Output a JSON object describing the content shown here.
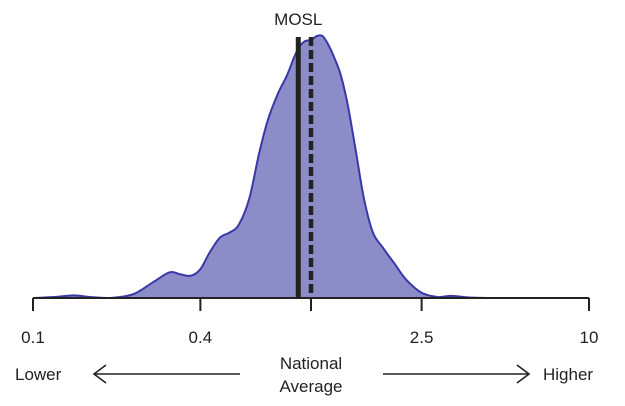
{
  "chart_data": {
    "type": "area",
    "x_scale": "log10",
    "xlim": [
      0.1,
      10
    ],
    "ylim": [
      0,
      1
    ],
    "x_ticks": [
      {
        "value": 0.1,
        "label": "0.1"
      },
      {
        "value": 0.4,
        "label": "0.4"
      },
      {
        "value": 1.0,
        "label": ""
      },
      {
        "value": 2.5,
        "label": "2.5"
      },
      {
        "value": 10,
        "label": "10"
      }
    ],
    "series": [
      {
        "x": [
          0.1,
          0.12,
          0.14,
          0.16,
          0.19,
          0.23,
          0.27,
          0.31,
          0.34,
          0.37,
          0.4,
          0.43,
          0.47,
          0.51,
          0.55,
          0.6,
          0.65,
          0.7,
          0.76,
          0.82,
          0.87,
          0.91,
          0.95,
          1.0,
          1.05,
          1.1,
          1.15,
          1.21,
          1.28,
          1.36,
          1.45,
          1.55,
          1.67,
          1.82,
          2.0,
          2.2,
          2.5,
          2.85,
          3.2,
          3.7,
          4.3,
          5.0,
          6.0,
          7.5,
          10
        ],
        "y": [
          0.0,
          0.004,
          0.01,
          0.004,
          0.0,
          0.015,
          0.06,
          0.098,
          0.09,
          0.085,
          0.11,
          0.17,
          0.23,
          0.25,
          0.28,
          0.38,
          0.55,
          0.68,
          0.78,
          0.85,
          0.92,
          0.96,
          0.98,
          0.985,
          1.0,
          1.0,
          0.97,
          0.92,
          0.85,
          0.73,
          0.56,
          0.38,
          0.25,
          0.19,
          0.13,
          0.07,
          0.02,
          0.004,
          0.008,
          0.002,
          0.0,
          0.0,
          0.0,
          0.0,
          0.0
        ]
      }
    ],
    "fill_color": "#8c8cc9",
    "stroke_color": "#3a38a8",
    "reference_lines": [
      {
        "value": 0.9,
        "label": "MOSL",
        "style": "solid",
        "color": "#222222"
      },
      {
        "value": 1.0,
        "label": "",
        "style": "dashed",
        "color": "#222222"
      }
    ],
    "annotations": {
      "lower_label": "Lower",
      "higher_label": "Higher",
      "center_label_line1": "National",
      "center_label_line2": "Average"
    }
  }
}
